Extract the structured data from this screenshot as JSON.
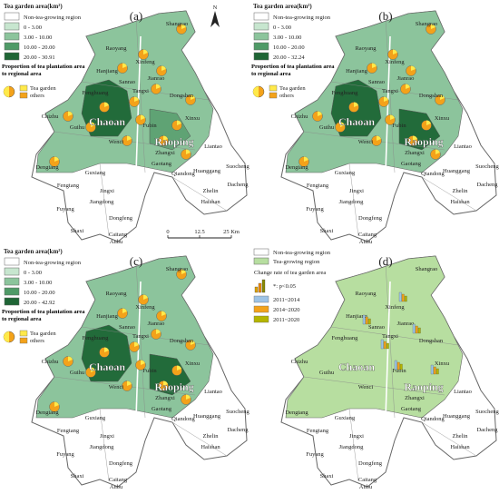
{
  "panels": [
    {
      "label": "(a)",
      "legend_title": "Tea garden area(km²)",
      "legend_items": [
        "Non-tea-growing region",
        "0 - 3.00",
        "3.00 - 10.00",
        "10.00 - 20.00",
        "20.00 - 30.91"
      ],
      "pie_title": "Proportion of tea plantation area to regional area",
      "pie_items": [
        "Tea garden",
        "others"
      ]
    },
    {
      "label": "(b)",
      "legend_title": "Tea garden area(km²)",
      "legend_items": [
        "Non-tea-growing region",
        "0 - 3.00",
        "3.00 - 10.00",
        "10.00 - 20.00",
        "20.00 - 32.24"
      ],
      "pie_title": "Proportion of tea plantation area to regional area",
      "pie_items": [
        "Tea garden",
        "others"
      ]
    },
    {
      "label": "(c)",
      "legend_title": "Tea garden area(km²)",
      "legend_items": [
        "Non-tea-growing region",
        "0 - 3.00",
        "3.00 - 10.00",
        "10.00 - 20.00",
        "20.00 - 42.92"
      ],
      "pie_title": "Proportion of tea plantation area to regional area",
      "pie_items": [
        "Tea garden",
        "others"
      ]
    },
    {
      "label": "(d)",
      "legend_items": [
        "Non-tea-growing region",
        "Tea-growing region"
      ],
      "change_title": "Change rate of tea garden area",
      "note": "*: p<0.05",
      "periods": [
        "2011~2014",
        "2014~2020",
        "2011~2020"
      ]
    }
  ],
  "districts": [
    "Chaoan",
    "Raoping"
  ],
  "place_names": [
    "Shangrao",
    "Raoyang",
    "Xinfeng",
    "Hanjiang",
    "Sanrao",
    "Jianrao",
    "Tangxi",
    "Dongshan",
    "Fenghuang",
    "Wenci",
    "Chizhu",
    "Guihu",
    "Fubin",
    "Xinxu",
    "Zhangxi",
    "Gaotang",
    "Qiandong",
    "Dengtang",
    "Guxiang",
    "Fengtang",
    "Jingxi",
    "Jiangdong",
    "Fuyang",
    "Dongfeng",
    "Shaxi",
    "Caitang",
    "Anbu",
    "Liantao",
    "Huanggang",
    "Suocheng",
    "Dacheng",
    "Zhelin",
    "Haishan"
  ],
  "north": "N",
  "scale_bar": [
    "0",
    "12.5",
    "25 Km"
  ]
}
